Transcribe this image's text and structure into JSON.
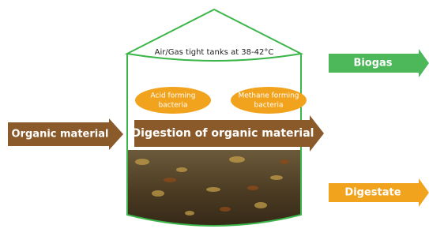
{
  "tank": {
    "label": "Air/Gas tight tanks at 38-42°C"
  },
  "bacteria": [
    {
      "lines": [
        "Acid forming",
        "bacteria"
      ]
    },
    {
      "lines": [
        "Methane forming",
        "bacteria"
      ]
    }
  ],
  "arrows": {
    "input": "Organic material",
    "process": "Digestion of organic material",
    "biogas": "Biogas",
    "digestate": "Digestate"
  }
}
